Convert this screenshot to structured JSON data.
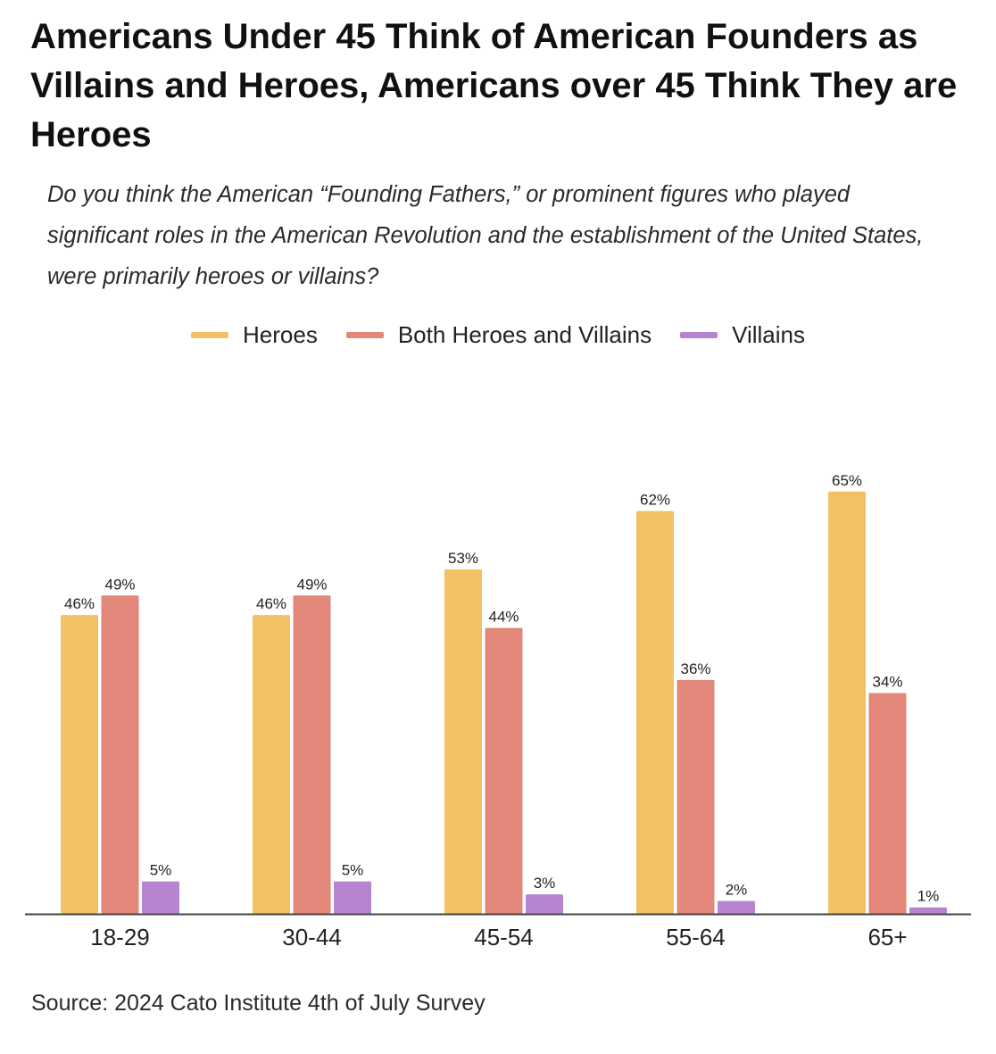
{
  "colors": {
    "heroes": "#F2C163",
    "both": "#E2877A",
    "villains": "#B884CF",
    "axis": "#444444",
    "text": "#222222"
  },
  "chart_data": {
    "type": "bar",
    "title": "Americans Under 45 Think of American Founders as Villains and Heroes, Americans over 45 Think They are Heroes",
    "subtitle": "Do you think the American “Founding Fathers,” or prominent figures who played significant roles in the American Revolution and the establishment of the United States, were primarily heroes or villains?",
    "xlabel": "",
    "ylabel": "",
    "ylim": [
      0,
      100
    ],
    "grid": false,
    "legend_position": "top-center",
    "categories": [
      "18-29",
      "30-44",
      "45-54",
      "55-64",
      "65+"
    ],
    "series": [
      {
        "name": "Heroes",
        "values": [
          46,
          46,
          53,
          62,
          65
        ],
        "labels": [
          "46%",
          "46%",
          "53%",
          "62%",
          "65%"
        ]
      },
      {
        "name": "Both Heroes and Villains",
        "values": [
          49,
          49,
          44,
          36,
          34
        ],
        "labels": [
          "49%",
          "49%",
          "44%",
          "36%",
          "34%"
        ]
      },
      {
        "name": "Villains",
        "values": [
          5,
          5,
          3,
          2,
          1
        ],
        "labels": [
          "5%",
          "5%",
          "3%",
          "2%",
          "1%"
        ]
      }
    ],
    "source": "Source: 2024 Cato Institute 4th of July Survey"
  }
}
